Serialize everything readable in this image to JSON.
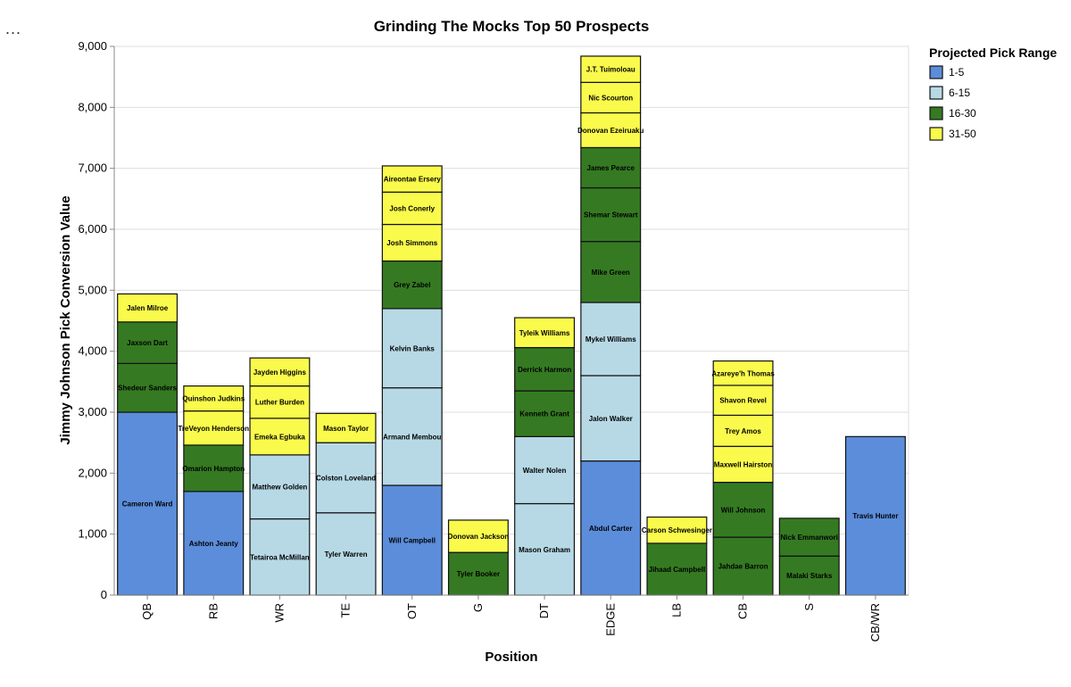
{
  "menu": {
    "label": "..."
  },
  "chart_data": {
    "type": "bar",
    "stacked": true,
    "title": "Grinding The Mocks Top 50 Prospects",
    "xlabel": "Position",
    "ylabel": "Jimmy Johnson Pick Conversion Value",
    "ylim": [
      0,
      9000
    ],
    "yticks": [
      0,
      1000,
      2000,
      3000,
      4000,
      5000,
      6000,
      7000,
      8000,
      9000
    ],
    "ytick_labels": [
      "0",
      "1,000",
      "2,000",
      "3,000",
      "4,000",
      "5,000",
      "6,000",
      "7,000",
      "8,000",
      "9,000"
    ],
    "grid": true,
    "legend": {
      "title": "Projected Pick Range",
      "position": "top-right",
      "items": [
        {
          "name": "1-5",
          "color": "#5b8ddb"
        },
        {
          "name": "6-15",
          "color": "#b7d9e6"
        },
        {
          "name": "16-30",
          "color": "#357a22"
        },
        {
          "name": "31-50",
          "color": "#fafa4c"
        }
      ]
    },
    "categories": [
      "QB",
      "RB",
      "WR",
      "TE",
      "OT",
      "G",
      "DT",
      "EDGE",
      "LB",
      "CB",
      "S",
      "CB/WR"
    ],
    "stacks": [
      {
        "position": "QB",
        "segments": [
          {
            "player": "Cameron Ward",
            "range": "1-5",
            "value": 3000
          },
          {
            "player": "Shedeur Sanders",
            "range": "16-30",
            "value": 800
          },
          {
            "player": "Jaxson Dart",
            "range": "16-30",
            "value": 680
          },
          {
            "player": "Jalen Milroe",
            "range": "31-50",
            "value": 460
          }
        ]
      },
      {
        "position": "RB",
        "segments": [
          {
            "player": "Ashton Jeanty",
            "range": "1-5",
            "value": 1700
          },
          {
            "player": "Omarion Hampton",
            "range": "16-30",
            "value": 760
          },
          {
            "player": "TreVeyon Henderson",
            "range": "31-50",
            "value": 560
          },
          {
            "player": "Quinshon Judkins",
            "range": "31-50",
            "value": 410
          }
        ]
      },
      {
        "position": "WR",
        "segments": [
          {
            "player": "Tetairoa McMillan",
            "range": "6-15",
            "value": 1250
          },
          {
            "player": "Matthew Golden",
            "range": "6-15",
            "value": 1050
          },
          {
            "player": "Emeka Egbuka",
            "range": "31-50",
            "value": 600
          },
          {
            "player": "Luther Burden",
            "range": "31-50",
            "value": 530
          },
          {
            "player": "Jayden Higgins",
            "range": "31-50",
            "value": 460
          }
        ]
      },
      {
        "position": "TE",
        "segments": [
          {
            "player": "Tyler Warren",
            "range": "6-15",
            "value": 1350
          },
          {
            "player": "Colston Loveland",
            "range": "6-15",
            "value": 1150
          },
          {
            "player": "Mason Taylor",
            "range": "31-50",
            "value": 480
          }
        ]
      },
      {
        "position": "OT",
        "segments": [
          {
            "player": "Will Campbell",
            "range": "1-5",
            "value": 1800
          },
          {
            "player": "Armand Membou",
            "range": "6-15",
            "value": 1600
          },
          {
            "player": "Kelvin Banks",
            "range": "6-15",
            "value": 1300
          },
          {
            "player": "Grey Zabel",
            "range": "16-30",
            "value": 780
          },
          {
            "player": "Josh Simmons",
            "range": "31-50",
            "value": 600
          },
          {
            "player": "Josh Conerly",
            "range": "31-50",
            "value": 530
          },
          {
            "player": "Aireontae Ersery",
            "range": "31-50",
            "value": 430
          }
        ]
      },
      {
        "position": "G",
        "segments": [
          {
            "player": "Tyler Booker",
            "range": "16-30",
            "value": 700
          },
          {
            "player": "Donovan Jackson",
            "range": "31-50",
            "value": 530
          }
        ]
      },
      {
        "position": "DT",
        "segments": [
          {
            "player": "Mason Graham",
            "range": "6-15",
            "value": 1500
          },
          {
            "player": "Walter Nolen",
            "range": "6-15",
            "value": 1100
          },
          {
            "player": "Kenneth Grant",
            "range": "16-30",
            "value": 750
          },
          {
            "player": "Derrick Harmon",
            "range": "16-30",
            "value": 710
          },
          {
            "player": "Tyleik Williams",
            "range": "31-50",
            "value": 490
          }
        ]
      },
      {
        "position": "EDGE",
        "segments": [
          {
            "player": "Abdul Carter",
            "range": "1-5",
            "value": 2200
          },
          {
            "player": "Jalon Walker",
            "range": "6-15",
            "value": 1400
          },
          {
            "player": "Mykel Williams",
            "range": "6-15",
            "value": 1200
          },
          {
            "player": "Mike Green",
            "range": "16-30",
            "value": 1000
          },
          {
            "player": "Shemar Stewart",
            "range": "16-30",
            "value": 880
          },
          {
            "player": "James Pearce",
            "range": "16-30",
            "value": 660
          },
          {
            "player": "Donovan Ezeiruaku",
            "range": "31-50",
            "value": 570
          },
          {
            "player": "Nic Scourton",
            "range": "31-50",
            "value": 500
          },
          {
            "player": "J.T. Tuimoloau",
            "range": "31-50",
            "value": 430
          }
        ]
      },
      {
        "position": "LB",
        "segments": [
          {
            "player": "Jihaad Campbell",
            "range": "16-30",
            "value": 850
          },
          {
            "player": "Carson Schwesinger",
            "range": "31-50",
            "value": 430
          }
        ]
      },
      {
        "position": "CB",
        "segments": [
          {
            "player": "Jahdae Barron",
            "range": "16-30",
            "value": 950
          },
          {
            "player": "Will Johnson",
            "range": "16-30",
            "value": 900
          },
          {
            "player": "Maxwell Hairston",
            "range": "31-50",
            "value": 590
          },
          {
            "player": "Trey Amos",
            "range": "31-50",
            "value": 510
          },
          {
            "player": "Shavon Revel",
            "range": "31-50",
            "value": 490
          },
          {
            "player": "Azareye'h Thomas",
            "range": "31-50",
            "value": 400
          }
        ]
      },
      {
        "position": "S",
        "segments": [
          {
            "player": "Malaki Starks",
            "range": "16-30",
            "value": 640
          },
          {
            "player": "Nick Emmanwori",
            "range": "16-30",
            "value": 620
          }
        ]
      },
      {
        "position": "CB/WR",
        "segments": [
          {
            "player": "Travis Hunter",
            "range": "1-5",
            "value": 2600
          }
        ]
      }
    ]
  }
}
